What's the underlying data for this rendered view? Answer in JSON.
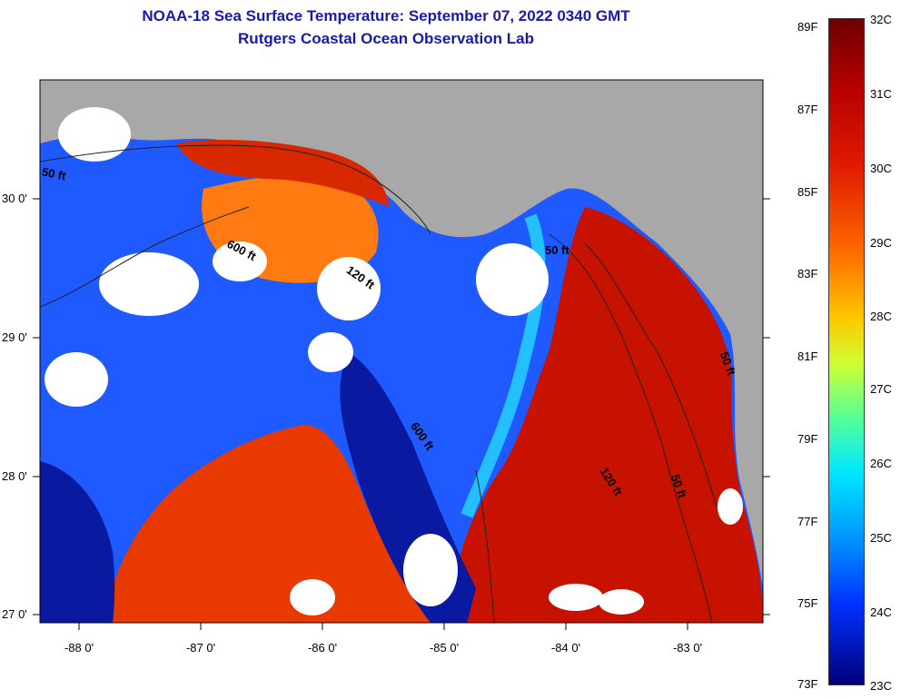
{
  "title": {
    "line1": "NOAA-18 Sea Surface Temperature:  September 07, 2022 0340 GMT",
    "line2": "Rutgers Coastal Ocean Observation Lab"
  },
  "axes": {
    "lat_labels": [
      "30 0'",
      "29 0'",
      "28 0'",
      "27 0'"
    ],
    "lon_labels": [
      "-88 0'",
      "-87 0'",
      "-86 0'",
      "-85 0'",
      "-84 0'",
      "-83 0'"
    ]
  },
  "contours": {
    "labels": [
      "50 ft",
      "600 ft",
      "120 ft",
      "50 ft",
      "600 ft",
      "120 ft",
      "50 ft",
      "50 ft"
    ]
  },
  "colorbar": {
    "fahrenheit": [
      "89F",
      "87F",
      "85F",
      "83F",
      "81F",
      "79F",
      "77F",
      "75F",
      "73F"
    ],
    "celsius": [
      "32C",
      "31C",
      "30C",
      "29C",
      "28C",
      "27C",
      "26C",
      "25C",
      "24C",
      "23C"
    ],
    "min_c": 23,
    "max_c": 32,
    "min_f": 73,
    "max_f": 89
  },
  "colors": {
    "title": "#1a1aa8",
    "land": "#a8a8a8",
    "warm": "#c81200",
    "cold": "#0a1aa0",
    "cloud": "#ffffff"
  }
}
